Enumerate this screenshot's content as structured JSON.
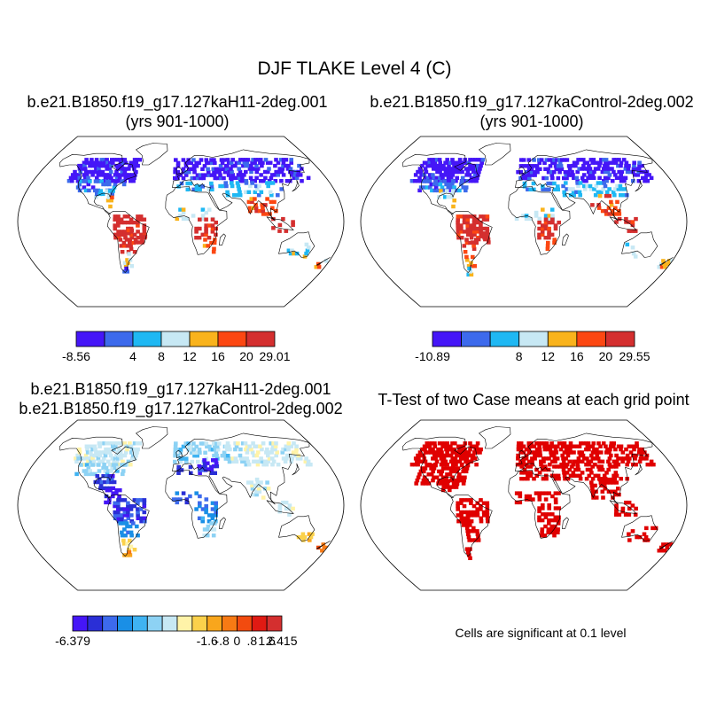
{
  "title": "DJF TLAKE Level 4 (C)",
  "panels": [
    {
      "line1": "b.e21.B1850.f19_g17.127kaH11-2deg.001",
      "line2": "(yrs 901-1000)"
    },
    {
      "line1": "b.e21.B1850.f19_g17.127kaControl-2deg.002",
      "line2": "(yrs 901-1000)"
    },
    {
      "line1": "b.e21.B1850.f19_g17.127kaH11-2deg.001",
      "line2": "b.e21.B1850.f19_g17.127kaControl-2deg.002"
    },
    {
      "line1": "T-Test of two Case means at each grid point",
      "line2": ""
    }
  ],
  "sig_note": "Cells are significant at 0.1 level",
  "chart_data": [
    {
      "type": "heatmap",
      "name": "case1",
      "title": "b.e21.B1850.f19_g17.127kaH11-2deg.001 (yrs 901-1000)",
      "projection": "Robinson",
      "colorbar": {
        "colors": [
          "#4516f7",
          "#3d6aec",
          "#1fb8f3",
          "#c7e8f4",
          "#f9b31c",
          "#fc4712",
          "#d42f2f"
        ],
        "labels": [
          "-8.56",
          "4",
          "8",
          "12",
          "16",
          "20",
          "29.01"
        ],
        "min": -8.56,
        "max": 29.01
      }
    },
    {
      "type": "heatmap",
      "name": "case2",
      "title": "b.e21.B1850.f19_g17.127kaControl-2deg.002 (yrs 901-1000)",
      "projection": "Robinson",
      "colorbar": {
        "colors": [
          "#4516f7",
          "#3d6aec",
          "#1fb8f3",
          "#c7e8f4",
          "#f9b31c",
          "#fc4712",
          "#d42f2f"
        ],
        "labels": [
          "-10.89",
          "8",
          "12",
          "16",
          "20",
          "29.55"
        ],
        "min": -10.89,
        "max": 29.55
      }
    },
    {
      "type": "heatmap",
      "name": "difference",
      "title": "b.e21.B1850.f19_g17.127kaH11-2deg.001 - b.e21.B1850.f19_g17.127kaControl-2deg.002",
      "projection": "Robinson",
      "colorbar": {
        "colors": [
          "#4516f7",
          "#2a2fd6",
          "#3d6aec",
          "#1a8fe6",
          "#3fb3f2",
          "#8dd2f4",
          "#c7e8f4",
          "#fff3a8",
          "#fbd14b",
          "#f9a61c",
          "#f77a14",
          "#f24b0f",
          "#e01a13",
          "#d42f2f"
        ],
        "labels": [
          "-6.379",
          "-1.6",
          "-.8",
          "0",
          ".8",
          "1.6",
          "2.415"
        ],
        "min": -6.379,
        "max": 2.415
      }
    },
    {
      "type": "heatmap",
      "name": "ttest",
      "title": "T-Test of two Case means at each grid point",
      "projection": "Robinson",
      "significance_level": 0.1,
      "color": "#e00000"
    }
  ],
  "colors": {
    "coast": "#000000",
    "sig": "#e00000"
  }
}
